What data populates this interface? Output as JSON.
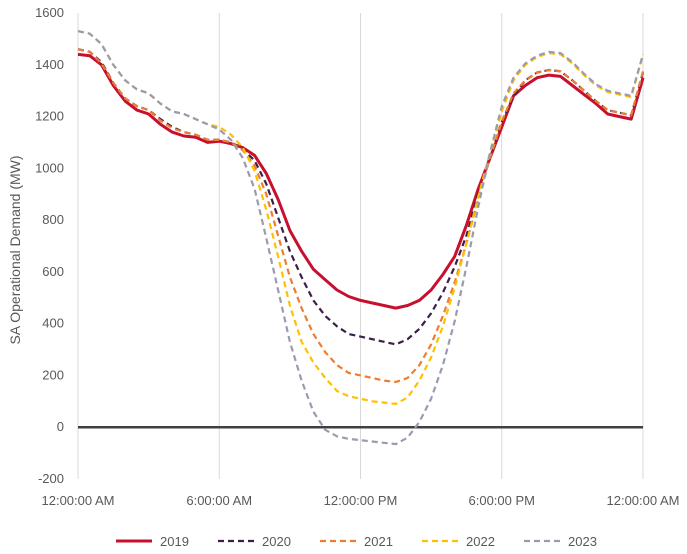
{
  "chart_data": {
    "type": "line",
    "title": "",
    "xlabel": "",
    "ylabel": "SA Operational Demand (MW)",
    "ylim": [
      -200,
      1600
    ],
    "yticks": [
      "-200",
      "0",
      "200",
      "400",
      "600",
      "800",
      "1000",
      "1200",
      "1400",
      "1600"
    ],
    "xlim": [
      0,
      24
    ],
    "xticks": [
      {
        "value": 0,
        "label": "12:00:00 AM"
      },
      {
        "value": 6,
        "label": "6:00:00 AM"
      },
      {
        "value": 12,
        "label": "12:00:00 PM"
      },
      {
        "value": 18,
        "label": "6:00:00 PM"
      },
      {
        "value": 24,
        "label": "12:00:00 AM"
      }
    ],
    "grid": "vertical",
    "zero_line": true,
    "legend_position": "bottom",
    "x": [
      0,
      0.5,
      1,
      1.5,
      2,
      2.5,
      3,
      3.5,
      4,
      4.5,
      5,
      5.5,
      6,
      6.5,
      7,
      7.5,
      8,
      8.5,
      9,
      9.5,
      10,
      10.5,
      11,
      11.5,
      12,
      12.5,
      13,
      13.5,
      14,
      14.5,
      15,
      15.5,
      16,
      16.5,
      17,
      17.5,
      18,
      18.5,
      19,
      19.5,
      20,
      20.5,
      21,
      21.5,
      22,
      22.5,
      23,
      23.5,
      24
    ],
    "series": [
      {
        "name": "2019",
        "color": "#c8102e",
        "dash": "solid",
        "values": [
          1440,
          1435,
          1400,
          1320,
          1260,
          1225,
          1210,
          1170,
          1140,
          1125,
          1120,
          1100,
          1105,
          1095,
          1080,
          1050,
          980,
          880,
          760,
          680,
          610,
          570,
          530,
          505,
          490,
          480,
          470,
          460,
          470,
          490,
          530,
          590,
          660,
          780,
          920,
          1040,
          1160,
          1280,
          1320,
          1350,
          1360,
          1355,
          1320,
          1285,
          1250,
          1210,
          1200,
          1190,
          1350
        ]
      },
      {
        "name": "2020",
        "color": "#3b1f4a",
        "dash": "dash",
        "values": [
          1460,
          1450,
          1410,
          1330,
          1270,
          1240,
          1225,
          1190,
          1160,
          1140,
          1130,
          1110,
          1110,
          1100,
          1075,
          1030,
          940,
          810,
          680,
          580,
          490,
          430,
          390,
          360,
          350,
          340,
          330,
          320,
          340,
          380,
          440,
          520,
          620,
          740,
          900,
          1040,
          1180,
          1280,
          1340,
          1370,
          1380,
          1375,
          1340,
          1300,
          1260,
          1225,
          1215,
          1205,
          1370
        ]
      },
      {
        "name": "2021",
        "color": "#ed7d31",
        "dash": "dash",
        "values": [
          1460,
          1450,
          1405,
          1330,
          1270,
          1240,
          1225,
          1185,
          1155,
          1140,
          1130,
          1110,
          1110,
          1100,
          1070,
          1010,
          900,
          740,
          580,
          460,
          360,
          290,
          240,
          210,
          200,
          190,
          180,
          175,
          190,
          240,
          320,
          430,
          560,
          710,
          880,
          1040,
          1180,
          1290,
          1340,
          1370,
          1380,
          1375,
          1340,
          1300,
          1260,
          1225,
          1215,
          1205,
          1375
        ]
      },
      {
        "name": "2022",
        "color": "#ffc000",
        "dash": "dash",
        "values": [
          1530,
          1520,
          1480,
          1400,
          1340,
          1305,
          1290,
          1250,
          1220,
          1210,
          1190,
          1170,
          1160,
          1130,
          1080,
          990,
          840,
          660,
          470,
          330,
          250,
          190,
          140,
          120,
          110,
          100,
          95,
          90,
          115,
          180,
          270,
          390,
          540,
          710,
          890,
          1060,
          1220,
          1340,
          1400,
          1430,
          1445,
          1440,
          1405,
          1360,
          1320,
          1295,
          1285,
          1275,
          1440
        ]
      },
      {
        "name": "2023",
        "color": "#9a9bb0",
        "dash": "dash",
        "values": [
          1530,
          1520,
          1480,
          1400,
          1340,
          1305,
          1290,
          1250,
          1220,
          1210,
          1190,
          1170,
          1150,
          1110,
          1040,
          920,
          730,
          530,
          330,
          180,
          60,
          -10,
          -35,
          -45,
          -50,
          -55,
          -60,
          -65,
          -40,
          20,
          110,
          240,
          410,
          620,
          850,
          1060,
          1240,
          1350,
          1405,
          1435,
          1450,
          1445,
          1410,
          1365,
          1325,
          1300,
          1290,
          1280,
          1440
        ]
      }
    ]
  }
}
